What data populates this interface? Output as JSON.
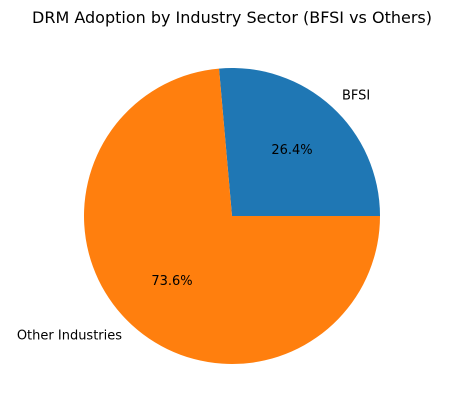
{
  "chart_data": {
    "type": "pie",
    "title": "DRM Adoption by Industry Sector (BFSI vs Others)",
    "slices": [
      {
        "label": "BFSI",
        "value": 26.4,
        "pct_label": "26.4%",
        "color": "#1f77b4"
      },
      {
        "label": "Other Industries",
        "value": 73.6,
        "pct_label": "73.6%",
        "color": "#ff7f0e"
      }
    ],
    "start_angle_deg": 0,
    "direction": "counterclockwise",
    "legend": "none"
  }
}
